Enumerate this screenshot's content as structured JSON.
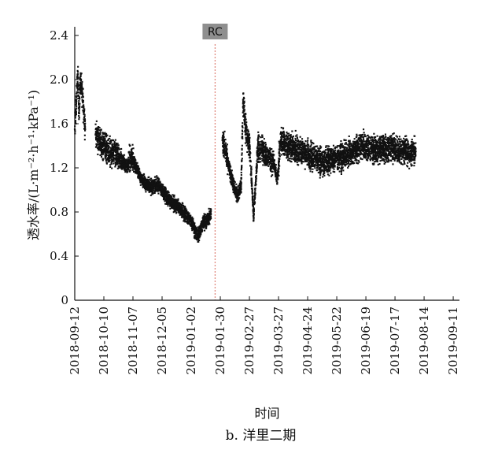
{
  "chart_data": {
    "type": "scatter",
    "caption": "b. 洋里二期",
    "xlabel": "时间",
    "ylabel": "透水率/(L·m⁻²·h⁻¹·kPa⁻¹)",
    "x_ticks": [
      "2018-09-12",
      "2018-10-10",
      "2018-11-07",
      "2018-12-05",
      "2019-01-02",
      "2019-01-30",
      "2019-02-27",
      "2019-03-27",
      "2019-04-24",
      "2019-05-22",
      "2019-06-19",
      "2019-07-17",
      "2019-08-14",
      "2019-09-11"
    ],
    "xlim": [
      "2018-09-12",
      "2019-09-17"
    ],
    "y_ticks": [
      "0",
      "0.4",
      "0.8",
      "1.2",
      "1.6",
      "2.0",
      "2.4"
    ],
    "ylim": [
      0,
      2.45
    ],
    "grid": false,
    "marker": "small dark square",
    "marker_color": "#111111",
    "annotation": {
      "label": "RC",
      "date": "2019-01-25",
      "line_color": "#e08a80",
      "line_style": "dotted",
      "label_background": "#8f8f8f"
    },
    "series": [
      {
        "points": [
          [
            "2018-09-12",
            1.55
          ],
          [
            "2018-09-13",
            1.72
          ],
          [
            "2018-09-14",
            1.85
          ],
          [
            "2018-09-15",
            2.05
          ],
          [
            "2018-09-16",
            1.7
          ],
          [
            "2018-09-17",
            1.95
          ],
          [
            "2018-09-18",
            2.0
          ],
          [
            "2018-09-22",
            1.55
          ],
          [
            "2018-10-02",
            1.5
          ],
          [
            "2018-10-06",
            1.45
          ],
          [
            "2018-10-10",
            1.4
          ],
          [
            "2018-10-14",
            1.35
          ],
          [
            "2018-10-18",
            1.32
          ],
          [
            "2018-10-22",
            1.32
          ],
          [
            "2018-10-27",
            1.25
          ],
          [
            "2018-11-01",
            1.22
          ],
          [
            "2018-11-06",
            1.3
          ],
          [
            "2018-11-10",
            1.2
          ],
          [
            "2018-11-15",
            1.1
          ],
          [
            "2018-11-20",
            1.05
          ],
          [
            "2018-11-25",
            1.03
          ],
          [
            "2018-11-30",
            1.05
          ],
          [
            "2018-12-05",
            1.0
          ],
          [
            "2018-12-10",
            0.93
          ],
          [
            "2018-12-15",
            0.88
          ],
          [
            "2018-12-20",
            0.85
          ],
          [
            "2018-12-25",
            0.8
          ],
          [
            "2018-12-30",
            0.75
          ],
          [
            "2019-01-03",
            0.7
          ],
          [
            "2019-01-06",
            0.62
          ],
          [
            "2019-01-09",
            0.58
          ],
          [
            "2019-01-13",
            0.7
          ],
          [
            "2019-01-17",
            0.72
          ],
          [
            "2019-01-21",
            0.78
          ],
          [
            "2019-02-01",
            1.45
          ],
          [
            "2019-02-04",
            1.35
          ],
          [
            "2019-02-07",
            1.22
          ],
          [
            "2019-02-10",
            1.1
          ],
          [
            "2019-02-13",
            1.0
          ],
          [
            "2019-02-16",
            0.95
          ],
          [
            "2019-02-19",
            1.05
          ],
          [
            "2019-02-21",
            1.8
          ],
          [
            "2019-02-24",
            1.5
          ],
          [
            "2019-02-27",
            1.4
          ],
          [
            "2019-03-01",
            1.1
          ],
          [
            "2019-03-03",
            0.75
          ],
          [
            "2019-03-07",
            1.38
          ],
          [
            "2019-03-12",
            1.35
          ],
          [
            "2019-03-17",
            1.3
          ],
          [
            "2019-03-22",
            1.25
          ],
          [
            "2019-03-26",
            1.1
          ],
          [
            "2019-03-29",
            1.45
          ],
          [
            "2019-04-05",
            1.4
          ],
          [
            "2019-04-12",
            1.38
          ],
          [
            "2019-04-19",
            1.35
          ],
          [
            "2019-04-26",
            1.3
          ],
          [
            "2019-05-03",
            1.28
          ],
          [
            "2019-05-10",
            1.25
          ],
          [
            "2019-05-17",
            1.28
          ],
          [
            "2019-05-24",
            1.3
          ],
          [
            "2019-05-31",
            1.32
          ],
          [
            "2019-06-07",
            1.35
          ],
          [
            "2019-06-14",
            1.4
          ],
          [
            "2019-06-21",
            1.38
          ],
          [
            "2019-06-28",
            1.36
          ],
          [
            "2019-07-05",
            1.38
          ],
          [
            "2019-07-12",
            1.38
          ],
          [
            "2019-07-19",
            1.36
          ],
          [
            "2019-07-26",
            1.35
          ],
          [
            "2019-08-02",
            1.35
          ],
          [
            "2019-08-06",
            1.35
          ]
        ]
      }
    ]
  }
}
